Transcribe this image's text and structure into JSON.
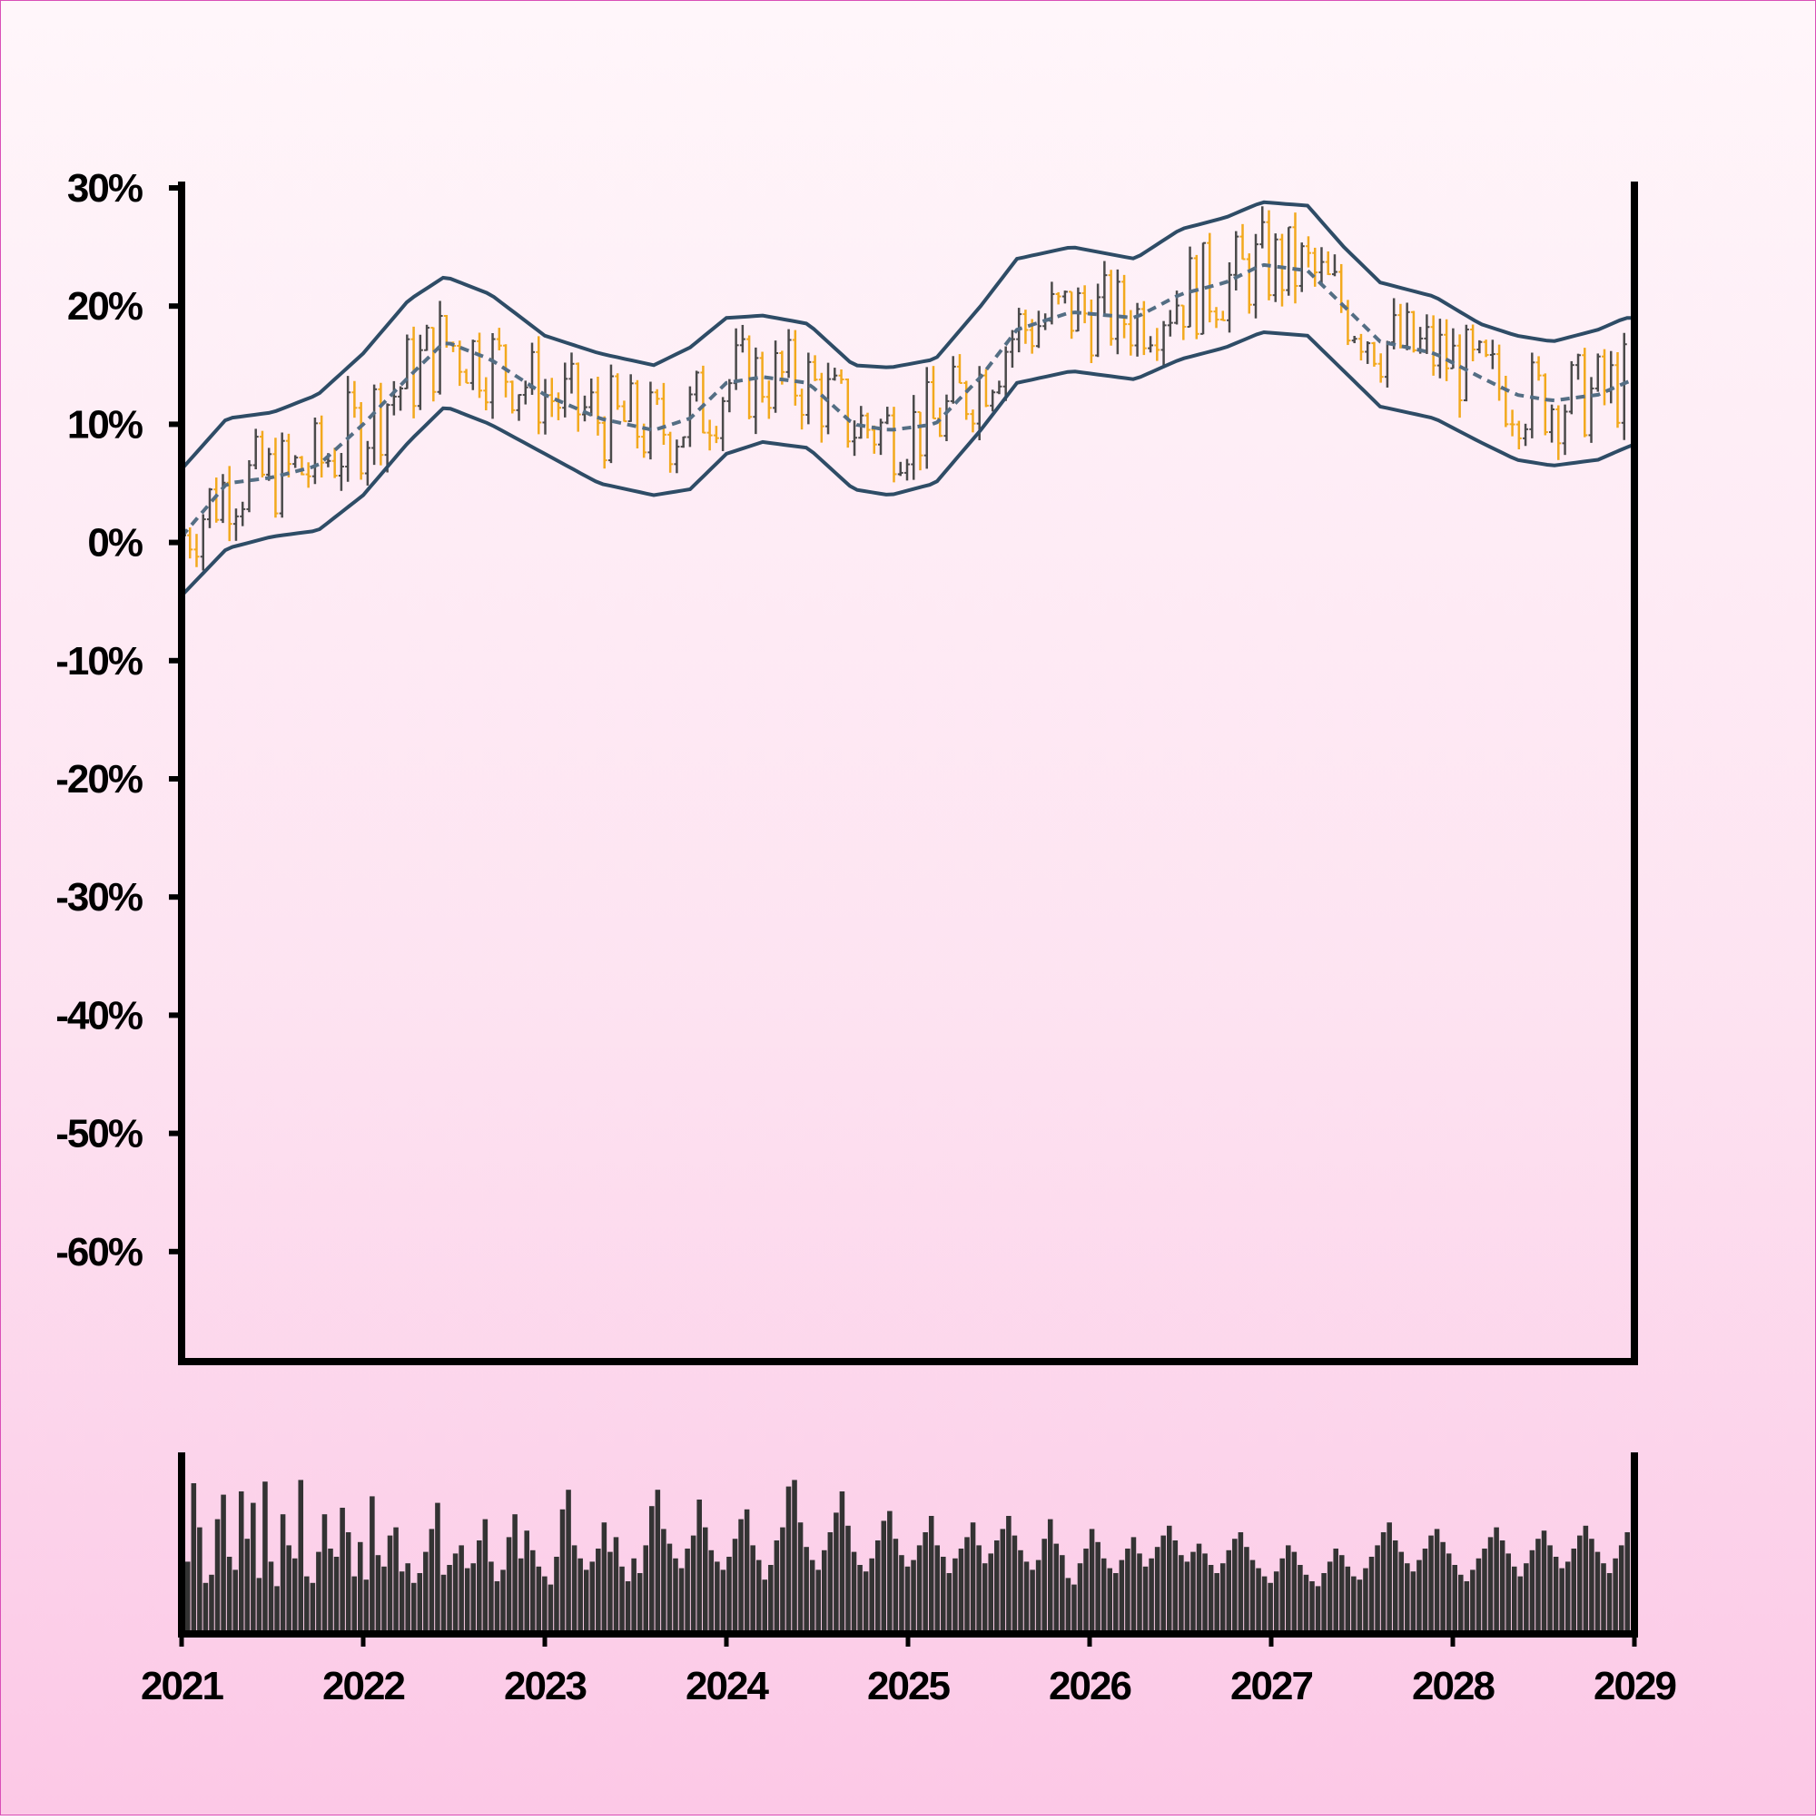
{
  "chart_data": {
    "type": "ohlc",
    "x_axis": {
      "ticks": [
        "2021",
        "2022",
        "2023",
        "2024",
        "2025",
        "2026",
        "2027",
        "2028",
        "2029"
      ],
      "range": [
        "2021-01",
        "2029-01"
      ]
    },
    "y_axis": {
      "ticks": [
        "30%",
        "20%",
        "10%",
        "0%",
        "-10%",
        "-20%",
        "-30%",
        "-40%",
        "-50%",
        "-60%"
      ],
      "range": [
        -70,
        30
      ],
      "unit": "%"
    },
    "grid": false,
    "colors": {
      "up": "#4a4a4a",
      "down": "#f2a91d",
      "bands": "#2e4c66",
      "middle": "#546e84",
      "volume": "#333333",
      "axis": "#000000"
    },
    "bands": {
      "x": [
        2021.0,
        2021.25,
        2021.5,
        2021.75,
        2022.0,
        2022.25,
        2022.45,
        2022.7,
        2023.0,
        2023.3,
        2023.6,
        2023.8,
        2024.0,
        2024.2,
        2024.45,
        2024.7,
        2024.9,
        2025.15,
        2025.4,
        2025.6,
        2025.9,
        2026.25,
        2026.5,
        2026.75,
        2026.95,
        2027.2,
        2027.4,
        2027.6,
        2027.9,
        2028.15,
        2028.35,
        2028.55,
        2028.8,
        2028.95,
        2029.0
      ],
      "upper": [
        6.2,
        10.5,
        11.0,
        12.5,
        16.0,
        20.5,
        22.5,
        21.0,
        17.5,
        16.0,
        15.0,
        16.5,
        19.0,
        19.2,
        18.5,
        15.0,
        14.8,
        15.5,
        20.0,
        24.0,
        25.0,
        24.0,
        26.5,
        27.5,
        28.8,
        28.5,
        25.0,
        22.0,
        20.8,
        18.5,
        17.5,
        17.0,
        18.0,
        19.0,
        19.0
      ],
      "middle": [
        0.5,
        5.0,
        5.5,
        6.5,
        10.0,
        14.0,
        17.0,
        15.5,
        12.5,
        10.5,
        9.5,
        10.5,
        13.5,
        14.0,
        13.5,
        10.0,
        9.5,
        10.0,
        14.0,
        18.0,
        19.5,
        19.0,
        21.0,
        22.0,
        23.5,
        23.0,
        20.0,
        17.0,
        16.0,
        14.0,
        12.5,
        12.0,
        12.5,
        13.5,
        13.8
      ],
      "lower": [
        -4.5,
        -0.5,
        0.5,
        1.0,
        4.0,
        8.5,
        11.5,
        10.0,
        7.5,
        5.0,
        4.0,
        4.5,
        7.5,
        8.5,
        8.0,
        4.5,
        4.0,
        5.0,
        9.5,
        13.5,
        14.5,
        13.8,
        15.5,
        16.5,
        17.8,
        17.5,
        14.5,
        11.5,
        10.5,
        8.5,
        7.0,
        6.5,
        7.0,
        8.0,
        8.3
      ]
    },
    "volume": [
      0.42,
      0.9,
      0.63,
      0.29,
      0.34,
      0.68,
      0.83,
      0.45,
      0.37,
      0.85,
      0.56,
      0.78,
      0.32,
      0.91,
      0.42,
      0.27,
      0.71,
      0.52,
      0.44,
      0.92,
      0.33,
      0.29,
      0.48,
      0.71,
      0.5,
      0.45,
      0.75,
      0.6,
      0.33,
      0.54,
      0.31,
      0.82,
      0.46,
      0.39,
      0.58,
      0.63,
      0.36,
      0.41,
      0.29,
      0.35,
      0.48,
      0.62,
      0.78,
      0.34,
      0.4,
      0.47,
      0.52,
      0.38,
      0.41,
      0.55,
      0.68,
      0.42,
      0.3,
      0.37,
      0.57,
      0.71,
      0.44,
      0.61,
      0.49,
      0.39,
      0.33,
      0.28,
      0.45,
      0.74,
      0.86,
      0.52,
      0.44,
      0.37,
      0.42,
      0.5,
      0.66,
      0.48,
      0.57,
      0.39,
      0.3,
      0.44,
      0.35,
      0.52,
      0.76,
      0.86,
      0.62,
      0.53,
      0.44,
      0.38,
      0.5,
      0.58,
      0.8,
      0.63,
      0.49,
      0.42,
      0.37,
      0.45,
      0.56,
      0.68,
      0.74,
      0.52,
      0.43,
      0.31,
      0.4,
      0.55,
      0.63,
      0.88,
      0.92,
      0.66,
      0.51,
      0.43,
      0.37,
      0.49,
      0.6,
      0.72,
      0.85,
      0.64,
      0.48,
      0.4,
      0.36,
      0.44,
      0.55,
      0.67,
      0.73,
      0.56,
      0.46,
      0.39,
      0.43,
      0.52,
      0.6,
      0.7,
      0.52,
      0.45,
      0.35,
      0.44,
      0.5,
      0.57,
      0.66,
      0.52,
      0.41,
      0.47,
      0.55,
      0.62,
      0.7,
      0.58,
      0.49,
      0.42,
      0.37,
      0.43,
      0.56,
      0.68,
      0.53,
      0.46,
      0.32,
      0.28,
      0.41,
      0.5,
      0.62,
      0.54,
      0.44,
      0.38,
      0.35,
      0.43,
      0.5,
      0.57,
      0.47,
      0.39,
      0.44,
      0.51,
      0.58,
      0.64,
      0.55,
      0.46,
      0.42,
      0.48,
      0.53,
      0.47,
      0.4,
      0.35,
      0.41,
      0.49,
      0.56,
      0.6,
      0.51,
      0.43,
      0.38,
      0.33,
      0.29,
      0.36,
      0.44,
      0.52,
      0.48,
      0.4,
      0.34,
      0.3,
      0.27,
      0.35,
      0.42,
      0.5,
      0.46,
      0.39,
      0.33,
      0.31,
      0.38,
      0.45,
      0.52,
      0.6,
      0.66,
      0.55,
      0.48,
      0.41,
      0.36,
      0.43,
      0.5,
      0.58,
      0.62,
      0.54,
      0.47,
      0.4,
      0.34,
      0.3,
      0.37,
      0.44,
      0.5,
      0.57,
      0.63,
      0.55,
      0.47,
      0.39,
      0.33,
      0.41,
      0.49,
      0.56,
      0.61,
      0.52,
      0.45,
      0.38,
      0.42,
      0.5,
      0.58,
      0.64,
      0.56,
      0.48,
      0.41,
      0.35,
      0.44,
      0.52,
      0.6
    ],
    "series_note": ""
  }
}
